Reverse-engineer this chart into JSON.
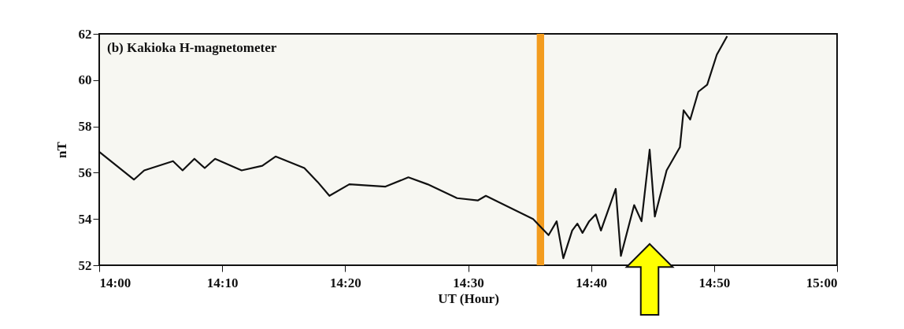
{
  "chart_data": {
    "type": "line",
    "title": "(b) Kakioka H-magnetometer",
    "xlabel": "UT (Hour)",
    "ylabel": "nT",
    "x": [
      14.0,
      14.047,
      14.061,
      14.1,
      14.113,
      14.129,
      14.143,
      14.157,
      14.193,
      14.221,
      14.239,
      14.278,
      14.296,
      14.312,
      14.339,
      14.388,
      14.419,
      14.445,
      14.485,
      14.513,
      14.524,
      14.588,
      14.609,
      14.62,
      14.629,
      14.641,
      14.648,
      14.655,
      14.664,
      14.673,
      14.68,
      14.7,
      14.707,
      14.725,
      14.735,
      14.746,
      14.753,
      14.769,
      14.787,
      14.792,
      14.801,
      14.812,
      14.824,
      14.837,
      14.851
    ],
    "series": [
      {
        "color": "#111111",
        "values": [
          56.9,
          55.7,
          56.1,
          56.5,
          56.1,
          56.6,
          56.2,
          56.6,
          56.1,
          56.3,
          56.7,
          56.2,
          55.6,
          55.0,
          55.5,
          55.4,
          55.8,
          55.5,
          54.9,
          54.8,
          55.0,
          54.0,
          53.3,
          53.9,
          52.3,
          53.5,
          53.8,
          53.4,
          53.9,
          54.2,
          53.5,
          55.3,
          52.4,
          54.6,
          53.9,
          57.0,
          54.1,
          56.1,
          57.1,
          58.7,
          58.3,
          59.5,
          59.8,
          61.1,
          61.9
        ]
      }
    ],
    "xlim": [
      14.0,
      15.0
    ],
    "xticks": [
      {
        "value": 14.0,
        "label": "14:00"
      },
      {
        "value": 14.16667,
        "label": "14:10"
      },
      {
        "value": 14.33333,
        "label": "14:20"
      },
      {
        "value": 14.5,
        "label": "14:30"
      },
      {
        "value": 14.66667,
        "label": "14:40"
      },
      {
        "value": 14.83333,
        "label": "14:50"
      },
      {
        "value": 15.0,
        "label": "15:00"
      }
    ],
    "ylim": [
      52,
      62
    ],
    "yticks": [
      52,
      54,
      56,
      58,
      60,
      62
    ],
    "bands": [
      {
        "axis": "x",
        "from": 14.593,
        "to": 14.603,
        "color": "#f39c1f"
      }
    ],
    "grid": false,
    "line_style": "solid",
    "marker": "none"
  }
}
